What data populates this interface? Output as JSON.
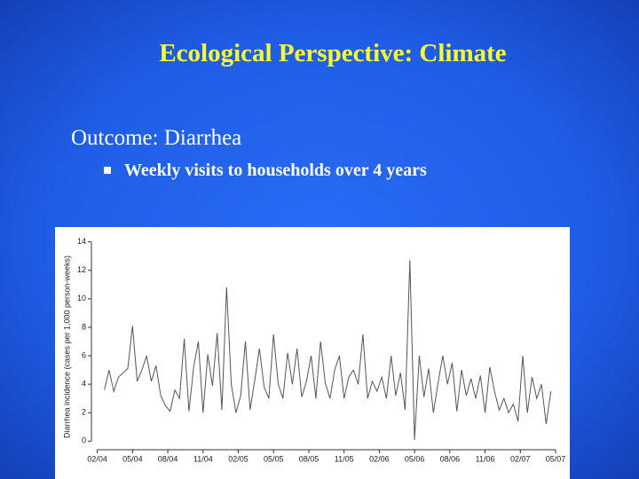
{
  "title": "Ecological Perspective: Climate",
  "outcome": "Outcome:  Diarrhea",
  "bullet": "Weekly visits to households over 4 years",
  "chart_data": {
    "type": "line",
    "y_label": "Diarrhea incidence (cases per 1,000 person-weeks)",
    "x": [
      1.6,
      2,
      2.4,
      2.8,
      3.2,
      3.6,
      4,
      4.4,
      4.8,
      5.2,
      5.6,
      6,
      6.4,
      6.8,
      7.2,
      7.6,
      8,
      8.4,
      8.8,
      9.2,
      9.6,
      10,
      10.4,
      10.8,
      11.2,
      11.6,
      12,
      12.4,
      12.8,
      13.2,
      13.6,
      14,
      14.4,
      14.8,
      15.2,
      15.6,
      16,
      16.4,
      16.8,
      17.2,
      17.6,
      18,
      18.4,
      18.8,
      19.2,
      19.6,
      20,
      20.4,
      20.8,
      21.2,
      21.6,
      22,
      22.4,
      22.8,
      23.2,
      23.6,
      24,
      24.4,
      24.8,
      25.2,
      25.6,
      26,
      26.4,
      26.8,
      27.2,
      27.6,
      28,
      28.4,
      28.8,
      29.2,
      29.6,
      30,
      30.4,
      30.8,
      31.2,
      31.6,
      32,
      32.4,
      32.8,
      33.2,
      33.6,
      34,
      34.4,
      34.8,
      35.2,
      35.6,
      36,
      36.4,
      36.8,
      37.2,
      37.6,
      38,
      38.4,
      38.8,
      39.2,
      39.6
    ],
    "values": [
      3.6,
      5.0,
      3.5,
      4.5,
      4.8,
      5.1,
      8.1,
      4.2,
      5.0,
      6.0,
      4.2,
      5.3,
      3.2,
      2.5,
      2.1,
      3.6,
      3.0,
      7.2,
      2.1,
      5.2,
      7.0,
      2.0,
      6.1,
      3.9,
      7.6,
      2.2,
      10.8,
      4.0,
      2.0,
      3.2,
      7.0,
      2.2,
      4.3,
      6.5,
      3.8,
      3.0,
      7.5,
      4.0,
      3.0,
      6.2,
      4.0,
      6.5,
      3.1,
      4.2,
      6.0,
      3.0,
      7.0,
      4.1,
      3.0,
      5.0,
      6.0,
      3.0,
      4.5,
      5.0,
      4.0,
      7.5,
      3.0,
      4.2,
      3.5,
      4.5,
      3.0,
      6.0,
      3.2,
      4.8,
      2.2,
      12.7,
      0.1,
      6.0,
      3.1,
      5.1,
      2.0,
      4.1,
      6.0,
      4.0,
      5.5,
      2.1,
      5.0,
      3.2,
      4.4,
      3.0,
      4.6,
      2.0,
      5.2,
      3.5,
      2.2,
      3.0,
      2.0,
      2.6,
      1.4,
      6.0,
      2.0,
      4.5,
      3.0,
      4.0,
      1.2,
      3.5
    ],
    "color": "#555555",
    "xlim": [
      0.5,
      40.3
    ],
    "xticks": [
      {
        "value": 1,
        "label": "02/04"
      },
      {
        "value": 4,
        "label": "05/04"
      },
      {
        "value": 7,
        "label": "08/04"
      },
      {
        "value": 10,
        "label": "11/04"
      },
      {
        "value": 13,
        "label": "02/05"
      },
      {
        "value": 16,
        "label": "05/05"
      },
      {
        "value": 19,
        "label": "08/05"
      },
      {
        "value": 22,
        "label": "11/05"
      },
      {
        "value": 25,
        "label": "02/06"
      },
      {
        "value": 28,
        "label": "05/06"
      },
      {
        "value": 31,
        "label": "08/06"
      },
      {
        "value": 34,
        "label": "11/06"
      },
      {
        "value": 37,
        "label": "02/07"
      },
      {
        "value": 40,
        "label": "05/07"
      }
    ],
    "ylim": [
      -0.6,
      14.6
    ],
    "yticks": [
      0,
      2,
      4,
      6,
      8,
      10,
      12,
      14
    ]
  }
}
